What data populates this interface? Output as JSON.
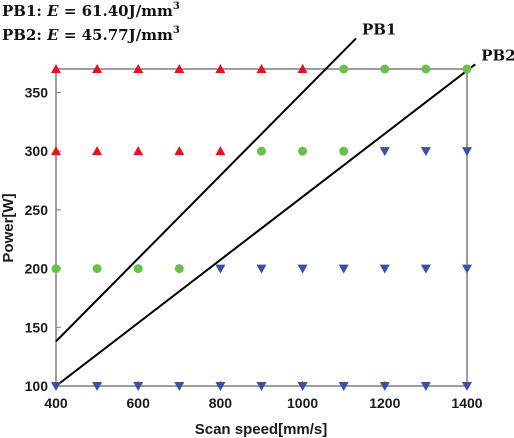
{
  "chart_data": {
    "type": "scatter",
    "xlabel": "Scan speed[mm/s]",
    "ylabel": "Power[W]",
    "xlim": [
      400,
      1400
    ],
    "ylim": [
      100,
      370
    ],
    "xticks": [
      400,
      600,
      800,
      1000,
      1200,
      1400
    ],
    "yticks": [
      100,
      150,
      200,
      250,
      300,
      350
    ],
    "grid": false,
    "annotations": [
      {
        "prefix": "PB1: ",
        "var": "E",
        "eq": " = ",
        "value": "61.40",
        "unit": "J/mm",
        "sup": "3"
      },
      {
        "prefix": "PB2: ",
        "var": "E",
        "eq": " = ",
        "value": "45.77",
        "unit": "J/mm",
        "sup": "3"
      }
    ],
    "series": [
      {
        "marker": "triangle-up",
        "color": "#e8101c",
        "points": [
          [
            400,
            370
          ],
          [
            500,
            370
          ],
          [
            600,
            370
          ],
          [
            700,
            370
          ],
          [
            800,
            370
          ],
          [
            900,
            370
          ],
          [
            1000,
            370
          ],
          [
            400,
            300
          ],
          [
            500,
            300
          ],
          [
            600,
            300
          ],
          [
            700,
            300
          ],
          [
            800,
            300
          ]
        ]
      },
      {
        "marker": "circle",
        "color": "#6cc04a",
        "points": [
          [
            1100,
            370
          ],
          [
            1200,
            370
          ],
          [
            1300,
            370
          ],
          [
            1400,
            370
          ],
          [
            900,
            300
          ],
          [
            1000,
            300
          ],
          [
            1100,
            300
          ],
          [
            400,
            200
          ],
          [
            500,
            200
          ],
          [
            600,
            200
          ],
          [
            700,
            200
          ]
        ]
      },
      {
        "marker": "triangle-down",
        "color": "#3a4fa8",
        "points": [
          [
            1200,
            300
          ],
          [
            1300,
            300
          ],
          [
            1400,
            300
          ],
          [
            800,
            200
          ],
          [
            900,
            200
          ],
          [
            1000,
            200
          ],
          [
            1100,
            200
          ],
          [
            1200,
            200
          ],
          [
            1300,
            200
          ],
          [
            1400,
            200
          ],
          [
            400,
            100
          ],
          [
            500,
            100
          ],
          [
            600,
            100
          ],
          [
            700,
            100
          ],
          [
            800,
            100
          ],
          [
            900,
            100
          ],
          [
            1000,
            100
          ],
          [
            1100,
            100
          ],
          [
            1200,
            100
          ],
          [
            1300,
            100
          ],
          [
            1400,
            100
          ]
        ]
      }
    ],
    "lines": [
      {
        "label": "PB1",
        "from": [
          400,
          138
        ],
        "to": [
          1130,
          396
        ],
        "color": "#000000"
      },
      {
        "label": "PB2",
        "from": [
          400,
          100
        ],
        "to": [
          1420,
          374
        ],
        "color": "#000000"
      }
    ]
  }
}
